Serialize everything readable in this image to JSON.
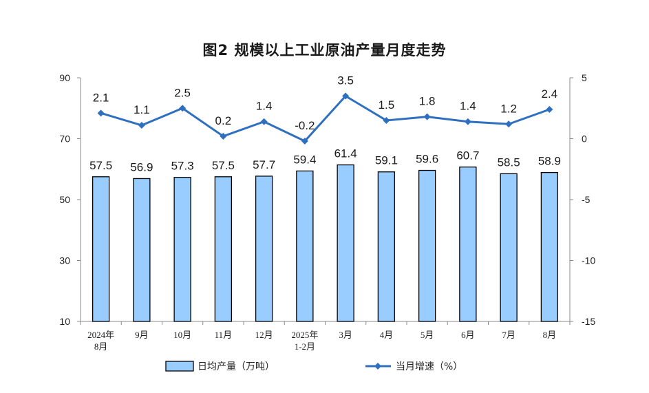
{
  "chart_data": {
    "type": "bar",
    "title": "图2  规模以上工业原油产量月度走势",
    "categories": [
      [
        "2024年",
        "8月"
      ],
      [
        "9月"
      ],
      [
        "10月"
      ],
      [
        "11月"
      ],
      [
        "12月"
      ],
      [
        "2025年",
        "1-2月"
      ],
      [
        "3月"
      ],
      [
        "4月"
      ],
      [
        "5月"
      ],
      [
        "6月"
      ],
      [
        "7月"
      ],
      [
        "8月"
      ]
    ],
    "series": [
      {
        "name": "日均产量（万吨）",
        "type": "bar",
        "axis": "left",
        "color": "#99ccff",
        "values": [
          57.5,
          56.9,
          57.3,
          57.5,
          57.7,
          59.4,
          61.4,
          59.1,
          59.6,
          60.7,
          58.5,
          58.9
        ],
        "labels": [
          "57.5",
          "56.9",
          "57.3",
          "57.5",
          "57.7",
          "59.4",
          "61.4",
          "59.1",
          "59.6",
          "60.7",
          "58.5",
          "58.9"
        ]
      },
      {
        "name": "当月增速（%）",
        "type": "line",
        "axis": "right",
        "color": "#2e6fbf",
        "values": [
          2.1,
          1.1,
          2.5,
          0.2,
          1.4,
          -0.2,
          3.5,
          1.5,
          1.8,
          1.4,
          1.2,
          2.4
        ],
        "labels": [
          "2.1",
          "1.1",
          "2.5",
          "0.2",
          "1.4",
          "-0.2",
          "3.5",
          "1.5",
          "1.8",
          "1.4",
          "1.2",
          "2.4"
        ]
      }
    ],
    "y_left": {
      "range": [
        10,
        90
      ],
      "ticks": [
        "10",
        "30",
        "50",
        "70",
        "90"
      ]
    },
    "y_right": {
      "range": [
        -15,
        5
      ],
      "ticks": [
        "-15",
        "-10",
        "-5",
        "0",
        "5"
      ]
    },
    "grid": false,
    "legend_position": "bottom"
  }
}
